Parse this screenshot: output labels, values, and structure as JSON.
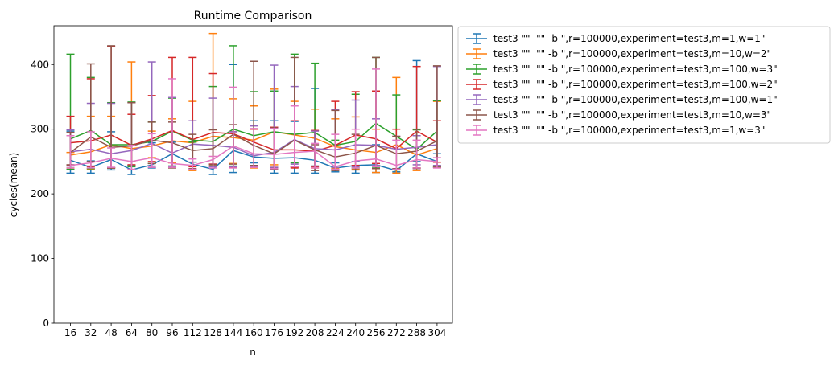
{
  "chart_data": {
    "type": "line",
    "title": "Runtime Comparison",
    "xlabel": "n",
    "ylabel": "cycles(mean)",
    "x": [
      16,
      32,
      48,
      64,
      80,
      96,
      112,
      128,
      144,
      160,
      176,
      192,
      208,
      224,
      240,
      256,
      272,
      288,
      304
    ],
    "x_tick_labels": [
      "16",
      "32",
      "48",
      "64",
      "80",
      "96",
      "112",
      "128",
      "144",
      "160",
      "176",
      "192",
      "208",
      "224",
      "240",
      "256",
      "272",
      "288",
      "304"
    ],
    "ylim": [
      0,
      460
    ],
    "y_ticks": [
      0,
      100,
      200,
      300,
      400
    ],
    "grid": false,
    "legend_position": "outside-right-top",
    "error_bars": true,
    "series": [
      {
        "name": "test3 \"\"  \"\" -b \",r=100000,experiment=test3,m=1,w=1\"",
        "color": "#1f77b4",
        "values": [
          252,
          241,
          253,
          237,
          245,
          262,
          246,
          238,
          267,
          257,
          255,
          256,
          252,
          240,
          244,
          245,
          236,
          262,
          250
        ],
        "err_low": [
          232,
          232,
          237,
          230,
          240,
          243,
          237,
          230,
          233,
          248,
          232,
          232,
          232,
          234,
          232,
          233,
          234,
          250,
          242
        ],
        "err_high": [
          297,
          251,
          296,
          244,
          279,
          280,
          249,
          246,
          400,
          313,
          313,
          312,
          363,
          248,
          250,
          276,
          238,
          406,
          262
        ]
      },
      {
        "name": "test3 \"\"  \"\" -b \",r=100000,experiment=test3,m=10,w=2\"",
        "color": "#ff7f0e",
        "values": [
          260,
          265,
          276,
          270,
          274,
          282,
          279,
          289,
          287,
          283,
          296,
          291,
          286,
          273,
          268,
          264,
          276,
          260,
          270
        ],
        "err_low": [
          240,
          238,
          240,
          250,
          256,
          248,
          236,
          243,
          247,
          240,
          245,
          241,
          240,
          240,
          238,
          233,
          232,
          236,
          243
        ],
        "err_high": [
          264,
          320,
          320,
          404,
          297,
          316,
          343,
          448,
          347,
          336,
          362,
          343,
          331,
          316,
          319,
          300,
          380,
          282,
          343
        ]
      },
      {
        "name": "test3 \"\"  \"\" -b \",r=100000,experiment=test3,m=100,w=3\"",
        "color": "#2ca02c",
        "values": [
          285,
          298,
          276,
          276,
          281,
          297,
          283,
          281,
          300,
          290,
          296,
          292,
          295,
          275,
          281,
          309,
          289,
          269,
          297
        ],
        "err_low": [
          238,
          239,
          240,
          242,
          247,
          243,
          249,
          243,
          243,
          243,
          240,
          248,
          243,
          238,
          240,
          240,
          237,
          240,
          241
        ],
        "err_high": [
          416,
          380,
          341,
          342,
          311,
          348,
          280,
          366,
          429,
          358,
          359,
          416,
          402,
          283,
          354,
          411,
          353,
          299,
          344
        ]
      },
      {
        "name": "test3 \"\"  \"\" -b \",r=100000,experiment=test3,m=100,w=2\"",
        "color": "#d62728",
        "values": [
          279,
          282,
          291,
          275,
          285,
          298,
          284,
          295,
          293,
          280,
          268,
          268,
          266,
          275,
          291,
          285,
          270,
          297,
          280
        ],
        "err_low": [
          244,
          242,
          240,
          245,
          250,
          242,
          242,
          246,
          241,
          243,
          241,
          240,
          242,
          238,
          244,
          247,
          238,
          240,
          249
        ],
        "err_high": [
          320,
          378,
          428,
          323,
          352,
          411,
          411,
          386,
          296,
          300,
          303,
          313,
          298,
          343,
          358,
          359,
          300,
          397,
          313
        ]
      },
      {
        "name": "test3 \"\"  \"\" -b \",r=100000,experiment=test3,m=100,w=1\"",
        "color": "#9467bd",
        "values": [
          265,
          269,
          262,
          267,
          278,
          263,
          277,
          275,
          272,
          259,
          264,
          284,
          270,
          268,
          276,
          275,
          269,
          272,
          276
        ],
        "err_low": [
          243,
          243,
          241,
          244,
          243,
          242,
          249,
          242,
          242,
          242,
          241,
          246,
          243,
          241,
          242,
          244,
          238,
          245,
          244
        ],
        "err_high": [
          299,
          340,
          340,
          341,
          404,
          349,
          313,
          348,
          296,
          305,
          399,
          366,
          297,
          330,
          345,
          316,
          289,
          290,
          397
        ]
      },
      {
        "name": "test3 \"\"  \"\" -b \",r=100000,experiment=test3,m=10,w=3\"",
        "color": "#8c564b",
        "values": [
          264,
          288,
          272,
          274,
          283,
          279,
          267,
          270,
          292,
          275,
          262,
          283,
          268,
          257,
          263,
          275,
          262,
          266,
          282
        ],
        "err_low": [
          245,
          250,
          240,
          244,
          247,
          240,
          239,
          245,
          246,
          244,
          238,
          242,
          236,
          236,
          237,
          239,
          239,
          239,
          241
        ],
        "err_high": [
          295,
          401,
          429,
          341,
          311,
          311,
          292,
          299,
          307,
          405,
          302,
          411,
          276,
          329,
          292,
          411,
          289,
          300,
          398
        ]
      },
      {
        "name": "test3 \"\"  \"\" -b \",r=100000,experiment=test3,m=1,w=3\"",
        "color": "#e377c2",
        "values": [
          244,
          248,
          255,
          250,
          256,
          247,
          244,
          253,
          274,
          262,
          261,
          264,
          266,
          242,
          251,
          254,
          244,
          253,
          250
        ],
        "err_low": [
          240,
          240,
          241,
          238,
          241,
          241,
          238,
          240,
          240,
          241,
          239,
          242,
          240,
          238,
          240,
          242,
          238,
          240,
          240
        ],
        "err_high": [
          290,
          296,
          271,
          275,
          293,
          378,
          254,
          258,
          365,
          301,
          301,
          336,
          278,
          292,
          300,
          393,
          283,
          283,
          256
        ]
      }
    ]
  }
}
